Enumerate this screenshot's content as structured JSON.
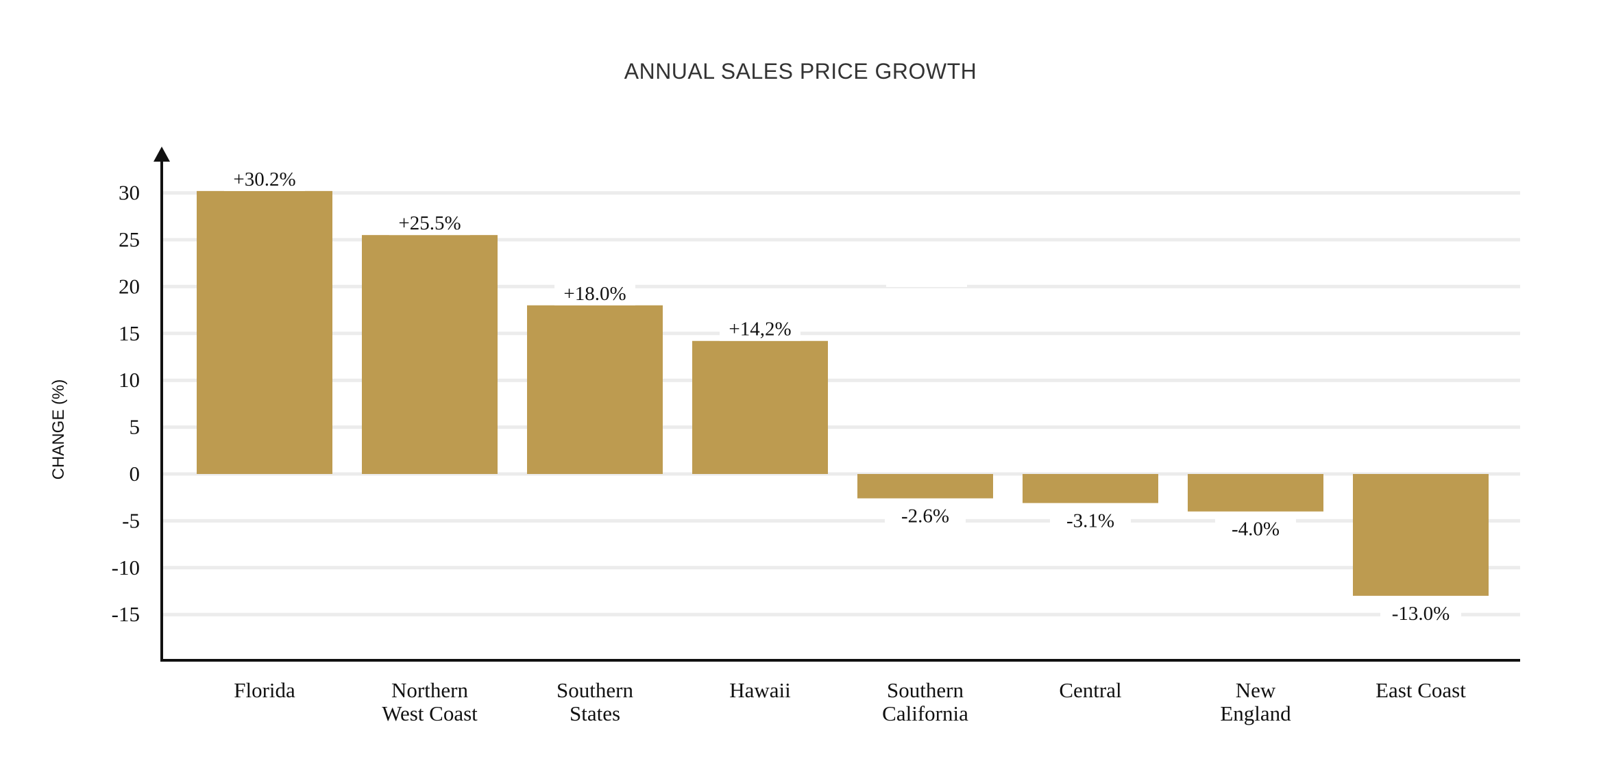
{
  "chart_data": {
    "type": "bar",
    "title": "ANNUAL SALES PRICE GROWTH",
    "xlabel": "",
    "ylabel": "CHANGE (%)",
    "ylim": [
      -20,
      34
    ],
    "yticks": [
      30,
      25,
      20,
      15,
      10,
      5,
      0,
      -5,
      -10,
      -15
    ],
    "grid": true,
    "categories": [
      [
        "Florida"
      ],
      [
        "Northern",
        "West Coast"
      ],
      [
        "Southern",
        "States"
      ],
      [
        "Hawaii"
      ],
      [
        "Southern",
        "California"
      ],
      [
        "Central"
      ],
      [
        "New",
        "England"
      ],
      [
        "East Coast"
      ]
    ],
    "values": [
      30.2,
      25.5,
      18.0,
      14.2,
      -2.6,
      -3.1,
      -4.0,
      -13.0
    ],
    "data_labels": [
      "+30.2%",
      "+25.5%",
      "+18.0%",
      "+14,2%",
      "-2.6%",
      "-3.1%",
      "-4.0%",
      "-13.0%"
    ],
    "colors": {
      "bar": "#BD9B50",
      "grid": "#ECECEC",
      "axis": "#111111"
    }
  }
}
